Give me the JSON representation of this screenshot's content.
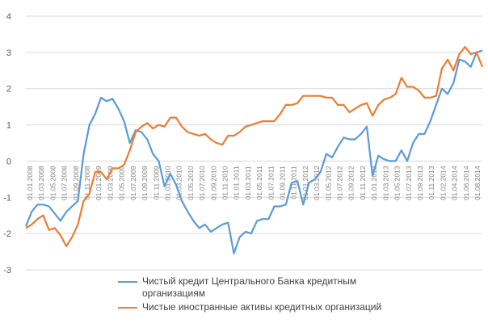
{
  "chart_data": {
    "type": "line",
    "title": "",
    "xlabel": "",
    "ylabel": "",
    "ylim": [
      -3,
      4
    ],
    "yticks": [
      "4",
      "3",
      "2",
      "1",
      "0",
      "-1",
      "-2",
      "-3"
    ],
    "grid": true,
    "legend_position": "bottom",
    "x_tick_labels": [
      "01.01.2008",
      "01.03.2008",
      "01.05.2008",
      "01.07.2008",
      "01.09.2008",
      "01.11.2008",
      "01.01.2009",
      "01.03.2009",
      "01.05.2009",
      "01.07.2009",
      "01.09.2009",
      "01.11.2009",
      "01.01.2010",
      "01.03.2010",
      "01.05.2010",
      "01.07.2010",
      "01.09.2010",
      "01.11.2010",
      "01.01.2011",
      "01.03.2011",
      "01.05.2011",
      "01.07.2011",
      "01.09.2011",
      "01.11.2011",
      "01.01.2012",
      "01.03.2012",
      "01.05.2012",
      "01.07.2012",
      "01.09.2012",
      "01.11.2012",
      "01.01.2013",
      "01.03.2013",
      "01.05.2013",
      "01.07.2013",
      "01.09.2013",
      "01.11.2013",
      "01.02.2014",
      "01.04.2014",
      "01.06.2014",
      "01.08.2014"
    ],
    "x_start": "01.2008",
    "x_step": "month",
    "series": [
      {
        "name": "Чистый кредит Центрального Банка кредитным организациям",
        "color": "#5b9bd5",
        "values": [
          -1.8,
          -1.4,
          -1.2,
          -1.2,
          -1.25,
          -1.45,
          -1.65,
          -1.4,
          -1.25,
          -1.1,
          0.2,
          1.0,
          1.3,
          1.75,
          1.65,
          1.72,
          1.45,
          1.1,
          0.5,
          0.85,
          0.8,
          0.6,
          0.2,
          0.0,
          -0.7,
          -0.35,
          -0.65,
          -1.1,
          -1.4,
          -1.65,
          -1.85,
          -1.75,
          -1.95,
          -1.85,
          -1.75,
          -1.7,
          -2.55,
          -2.1,
          -1.95,
          -2.0,
          -1.65,
          -1.6,
          -1.6,
          -1.25,
          -1.25,
          -1.2,
          -0.6,
          -0.55,
          -1.2,
          -0.6,
          -0.5,
          -0.3,
          0.2,
          0.1,
          0.4,
          0.65,
          0.6,
          0.6,
          0.75,
          0.95,
          -0.4,
          0.15,
          0.05,
          0.0,
          0.0,
          0.3,
          0.0,
          0.5,
          0.75,
          0.75,
          1.1,
          1.55,
          2.0,
          1.85,
          2.15,
          2.8,
          2.75,
          2.6,
          3.0,
          3.05
        ]
      },
      {
        "name": "Чистые иностранные активы кредитных организаций",
        "color": "#ed7d31",
        "values": [
          -1.85,
          -1.75,
          -1.6,
          -1.5,
          -1.9,
          -1.85,
          -2.05,
          -2.35,
          -2.1,
          -1.75,
          -1.1,
          -0.9,
          -0.3,
          -0.3,
          -0.5,
          -0.2,
          -0.2,
          -0.1,
          0.3,
          0.8,
          0.95,
          1.05,
          0.9,
          1.0,
          0.95,
          1.2,
          1.2,
          0.95,
          0.8,
          0.75,
          0.7,
          0.75,
          0.6,
          0.5,
          0.45,
          0.7,
          0.7,
          0.8,
          0.95,
          1.0,
          1.05,
          1.1,
          1.1,
          1.1,
          1.3,
          1.55,
          1.55,
          1.6,
          1.8,
          1.8,
          1.8,
          1.8,
          1.75,
          1.75,
          1.55,
          1.55,
          1.35,
          1.45,
          1.55,
          1.6,
          1.25,
          1.55,
          1.7,
          1.75,
          1.85,
          2.3,
          2.05,
          2.05,
          1.95,
          1.75,
          1.75,
          1.8,
          2.55,
          2.8,
          2.5,
          2.95,
          3.15,
          2.95,
          3.0,
          2.6
        ]
      }
    ]
  }
}
